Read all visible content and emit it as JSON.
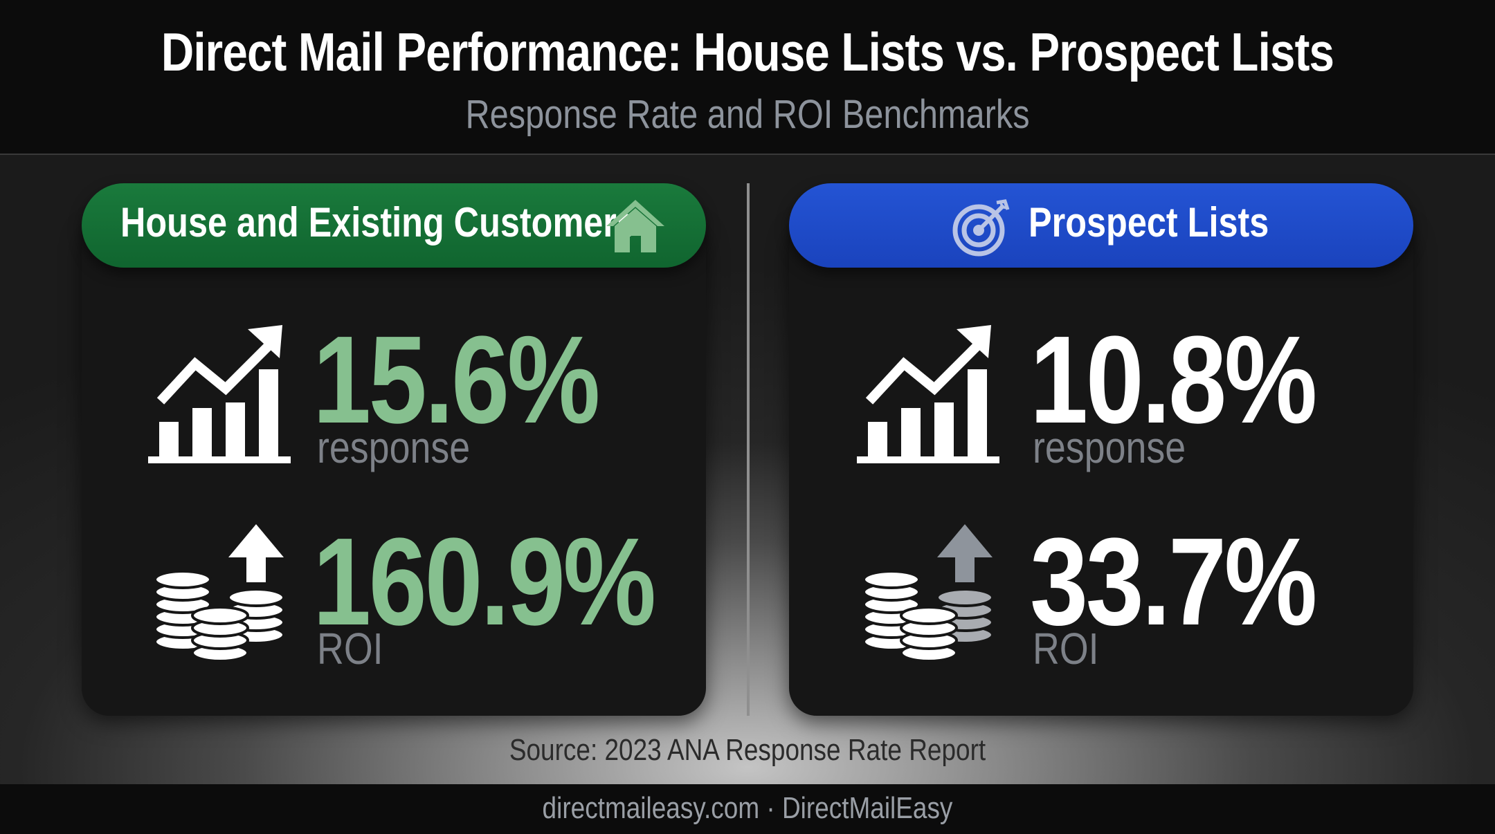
{
  "header": {
    "title": "Direct Mail Performance: House Lists vs. Prospect Lists",
    "subtitle": "Response Rate and ROI Benchmarks"
  },
  "panels": [
    {
      "heading": "House and Existing Customers",
      "heading_icon": "house-icon",
      "color": "#157236",
      "response_value": "15.6%",
      "response_label": "response",
      "roi_value": "160.9%",
      "roi_label": "ROI",
      "value_color": "#86c08f"
    },
    {
      "heading": "Prospect Lists",
      "heading_icon": "target-icon",
      "color": "#1f4cc9",
      "response_value": "10.8%",
      "response_label": "response",
      "roi_value": "33.7%",
      "roi_label": "ROI",
      "value_color": "#ffffff"
    }
  ],
  "icons": {
    "response": "growth-chart-icon",
    "roi": "coins-up-arrow-icon"
  },
  "source": "Source: 2023 ANA Response Rate Report",
  "footer": "directmaileasy.com · DirectMailEasy"
}
